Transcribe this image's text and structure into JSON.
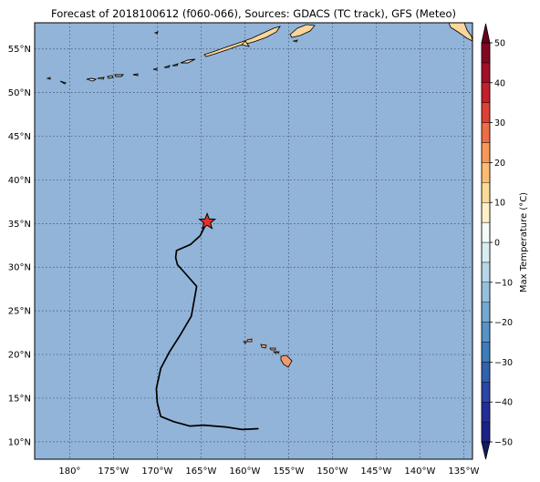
{
  "title": "Forecast of 2018100612 (f060-066), Sources: GDACS (TC track), GFS (Meteo)",
  "map": {
    "projection": "PlateCarree",
    "lon_range": [
      -184,
      -134
    ],
    "lat_range": [
      8,
      58
    ],
    "gridlines": "dotted",
    "ocean_color": "#92b4d8",
    "lon_ticks": [
      {
        "value": -180,
        "label": "180°"
      },
      {
        "value": -175,
        "label": "175°W"
      },
      {
        "value": -170,
        "label": "170°W"
      },
      {
        "value": -165,
        "label": "165°W"
      },
      {
        "value": -160,
        "label": "160°W"
      },
      {
        "value": -155,
        "label": "155°W"
      },
      {
        "value": -150,
        "label": "150°W"
      },
      {
        "value": -145,
        "label": "145°W"
      },
      {
        "value": -140,
        "label": "140°W"
      },
      {
        "value": -135,
        "label": "135°W"
      }
    ],
    "lat_ticks": [
      {
        "value": 55,
        "label": "55°N"
      },
      {
        "value": 50,
        "label": "50°N"
      },
      {
        "value": 45,
        "label": "45°N"
      },
      {
        "value": 40,
        "label": "40°N"
      },
      {
        "value": 35,
        "label": "35°N"
      },
      {
        "value": 30,
        "label": "30°N"
      },
      {
        "value": 25,
        "label": "25°N"
      },
      {
        "value": 20,
        "label": "20°N"
      },
      {
        "value": 15,
        "label": "15°N"
      },
      {
        "value": 10,
        "label": "10°N"
      }
    ]
  },
  "track": {
    "color": "#000000",
    "points": [
      [
        -158.5,
        11.5
      ],
      [
        -160.3,
        11.4
      ],
      [
        -162.2,
        11.7
      ],
      [
        -164.7,
        11.9
      ],
      [
        -166.3,
        11.8
      ],
      [
        -168.1,
        12.3
      ],
      [
        -169.6,
        12.9
      ],
      [
        -170.0,
        14.5
      ],
      [
        -170.1,
        16.1
      ],
      [
        -169.6,
        18.4
      ],
      [
        -168.6,
        20.3
      ],
      [
        -167.4,
        22.2
      ],
      [
        -166.1,
        24.4
      ],
      [
        -165.5,
        27.8
      ],
      [
        -166.9,
        29.4
      ],
      [
        -167.7,
        30.3
      ],
      [
        -167.9,
        31.1
      ],
      [
        -167.8,
        31.9
      ],
      [
        -166.2,
        32.6
      ],
      [
        -165.1,
        33.6
      ],
      [
        -164.3,
        35.2
      ]
    ],
    "storm_position": [
      -164.3,
      35.2
    ],
    "storm_marker": "red-star",
    "storm_color": "#e8312a"
  },
  "land": {
    "hawaii_color": "#f09a6a",
    "alaska_color": "#fbd59a"
  },
  "colorbar": {
    "label": "Max Temperature (°C)",
    "extend": "both",
    "min": -50,
    "max": 50,
    "step": 5,
    "tick_values": [
      50,
      40,
      30,
      20,
      10,
      0,
      -10,
      -20,
      -30,
      -40,
      -50
    ],
    "tick_labels": [
      "50",
      "40",
      "30",
      "20",
      "10",
      "0",
      "−10",
      "−20",
      "−30",
      "−40",
      "−50"
    ],
    "colors_low_to_high": [
      "#1b2287",
      "#232d9a",
      "#2c45a8",
      "#3062b0",
      "#3d7cbb",
      "#5693c6",
      "#74a9d1",
      "#94c0dc",
      "#b6d6e8",
      "#d9ecf3",
      "#f5fbfb",
      "#fdf1c9",
      "#fddb97",
      "#fcbd73",
      "#f99758",
      "#ee6d45",
      "#dd4135",
      "#c41f2b",
      "#a30f27",
      "#840522"
    ],
    "under_color": "#121a66",
    "over_color": "#67001f"
  }
}
